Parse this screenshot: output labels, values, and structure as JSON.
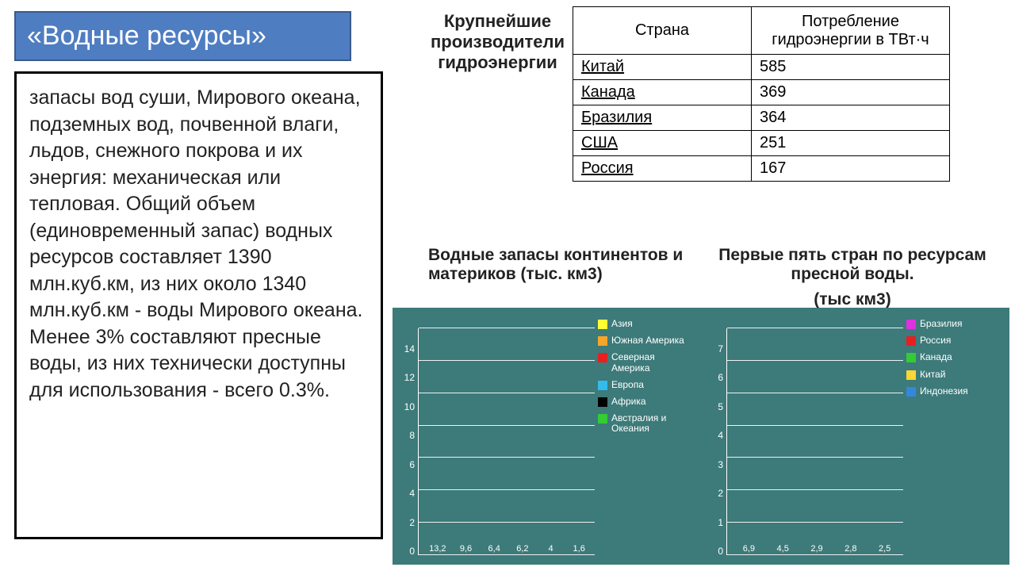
{
  "title": "«Водные ресурсы»",
  "definition": "запасы вод суши, Мирового океана, подземных вод, почвенной влаги, льдов, снежного покрова и их энергия: механическая или тепловая. Общий объем (единовременный запас) водных ресурсов составляет 1390 млн.куб.км, из них около 1340 млн.куб.км - воды Мирового океана. Менее 3% составляют пресные воды, из них технически доступны для использования - всего 0.3%.",
  "table_heading": "Крупнейшие производители гидроэнергии",
  "table": {
    "columns": [
      "Страна",
      "Потребление гидроэнергии в ТВт·ч"
    ],
    "rows": [
      [
        "Китай",
        "585"
      ],
      [
        "Канада",
        "369"
      ],
      [
        "Бразилия",
        "364"
      ],
      [
        "США",
        "251"
      ],
      [
        "Россия",
        "167"
      ]
    ]
  },
  "chart1_title": "Водные запасы континентов и материков (тыс. км3)",
  "chart2_title_line1": "Первые пять стран по ресурсам пресной воды.",
  "chart2_title_line2": "(тыс км3)",
  "charts_panel": {
    "background_color": "#3d7a7a",
    "text_color": "#ffffff"
  },
  "chart1": {
    "type": "bar",
    "ylim": [
      0,
      14
    ],
    "ytick_step": 2,
    "yticks": [
      "0",
      "2",
      "4",
      "6",
      "8",
      "10",
      "12",
      "14"
    ],
    "series": [
      {
        "label": "Азия",
        "value": 13.2,
        "display": "13,2",
        "color": "#ffff33"
      },
      {
        "label": "Южная Америка",
        "value": 9.6,
        "display": "9,6",
        "color": "#f7a528"
      },
      {
        "label": "Северная Америка",
        "value": 6.4,
        "display": "6,4",
        "color": "#e62020"
      },
      {
        "label": "Европа",
        "value": 6.2,
        "display": "6,2",
        "color": "#33bbee"
      },
      {
        "label": "Африка",
        "value": 4,
        "display": "4",
        "color": "#000000"
      },
      {
        "label": "Австралия и Океания",
        "value": 1.6,
        "display": "1,6",
        "color": "#33cc33"
      }
    ]
  },
  "chart2": {
    "type": "bar",
    "ylim": [
      0,
      7
    ],
    "ytick_step": 1,
    "yticks": [
      "0",
      "1",
      "2",
      "3",
      "4",
      "5",
      "6",
      "7"
    ],
    "series": [
      {
        "label": "Бразилия",
        "value": 6.9,
        "display": "6,9",
        "color": "#e030e0"
      },
      {
        "label": "Россия",
        "value": 4.5,
        "display": "4,5",
        "color": "#e62020"
      },
      {
        "label": "Канада",
        "value": 2.9,
        "display": "2,9",
        "color": "#33cc33"
      },
      {
        "label": "Китай",
        "value": 2.8,
        "display": "2,8",
        "color": "#ffd633"
      },
      {
        "label": "Индонезия",
        "value": 2.5,
        "display": "2,5",
        "color": "#3388dd"
      }
    ]
  }
}
